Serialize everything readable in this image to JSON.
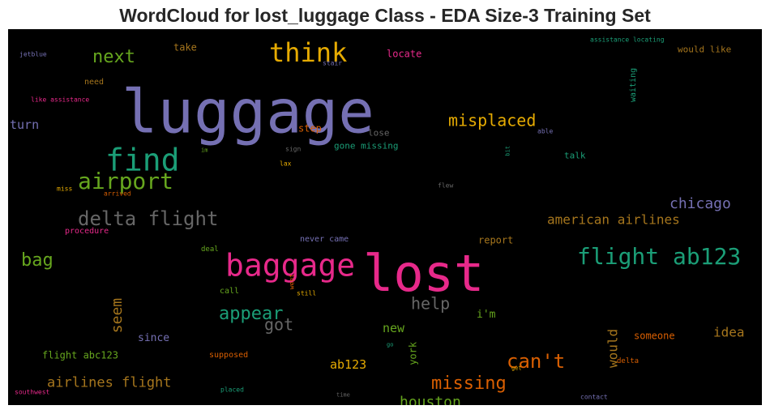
{
  "chart_data": {
    "type": "wordcloud",
    "title": "WordCloud for lost_luggage Class - EDA Size-3 Training Set",
    "colormap": [
      "#7570b3",
      "#1b9e77",
      "#e7298a",
      "#d95f02",
      "#e6ab02",
      "#66a61e",
      "#a6761d",
      "#666666"
    ],
    "words": [
      {
        "text": "luggage",
        "weight": 100,
        "color": "#7570b3"
      },
      {
        "text": "lost",
        "weight": 90,
        "color": "#e7298a"
      },
      {
        "text": "baggage",
        "weight": 62,
        "color": "#e7298a"
      },
      {
        "text": "think",
        "weight": 52,
        "color": "#e6ab02"
      },
      {
        "text": "find",
        "weight": 60,
        "color": "#1b9e77"
      },
      {
        "text": "airport",
        "weight": 44,
        "color": "#66a61e"
      },
      {
        "text": "flight ab123",
        "weight": 46,
        "color": "#1b9e77"
      },
      {
        "text": "delta flight",
        "weight": 40,
        "color": "#666666"
      },
      {
        "text": "misplaced",
        "weight": 34,
        "color": "#e6ab02"
      },
      {
        "text": "next",
        "weight": 34,
        "color": "#66a61e"
      },
      {
        "text": "missing",
        "weight": 36,
        "color": "#d95f02"
      },
      {
        "text": "can't",
        "weight": 36,
        "color": "#d95f02"
      },
      {
        "text": "appear",
        "weight": 36,
        "color": "#1b9e77"
      },
      {
        "text": "chicago",
        "weight": 30,
        "color": "#7570b3"
      },
      {
        "text": "bag",
        "weight": 32,
        "color": "#66a61e"
      },
      {
        "text": "help",
        "weight": 30,
        "color": "#666666"
      },
      {
        "text": "got",
        "weight": 30,
        "color": "#666666"
      },
      {
        "text": "houston",
        "weight": 30,
        "color": "#66a61e"
      },
      {
        "text": "seem",
        "weight": 28,
        "color": "#a6761d"
      },
      {
        "text": "airlines flight",
        "weight": 28,
        "color": "#a6761d"
      },
      {
        "text": "american airlines",
        "weight": 26,
        "color": "#a6761d"
      },
      {
        "text": "would",
        "weight": 26,
        "color": "#a6761d"
      },
      {
        "text": "idea",
        "weight": 26,
        "color": "#a6761d"
      },
      {
        "text": "ab123",
        "weight": 24,
        "color": "#e6ab02"
      },
      {
        "text": "new",
        "weight": 24,
        "color": "#66a61e"
      },
      {
        "text": "turn",
        "weight": 24,
        "color": "#7570b3"
      },
      {
        "text": "york",
        "weight": 20,
        "color": "#66a61e"
      },
      {
        "text": "flight abc123",
        "weight": 20,
        "color": "#66a61e"
      },
      {
        "text": "since",
        "weight": 20,
        "color": "#7570b3"
      },
      {
        "text": "i'm",
        "weight": 20,
        "color": "#66a61e"
      },
      {
        "text": "someone",
        "weight": 20,
        "color": "#d95f02"
      },
      {
        "text": "report",
        "weight": 20,
        "color": "#a6761d"
      },
      {
        "text": "locate",
        "weight": 20,
        "color": "#e7298a"
      },
      {
        "text": "take",
        "weight": 20,
        "color": "#a6761d"
      },
      {
        "text": "step",
        "weight": 20,
        "color": "#d95f02"
      },
      {
        "text": "talk",
        "weight": 18,
        "color": "#1b9e77"
      },
      {
        "text": "would like",
        "weight": 18,
        "color": "#a6761d"
      },
      {
        "text": "lose",
        "weight": 18,
        "color": "#666666"
      },
      {
        "text": "gone missing",
        "weight": 18,
        "color": "#1b9e77"
      },
      {
        "text": "waiting",
        "weight": 16,
        "color": "#1b9e77"
      },
      {
        "text": "need",
        "weight": 16,
        "color": "#a6761d"
      },
      {
        "text": "never came",
        "weight": 18,
        "color": "#7570b3"
      },
      {
        "text": "procedure",
        "weight": 18,
        "color": "#e7298a"
      },
      {
        "text": "supposed",
        "weight": 18,
        "color": "#d95f02"
      },
      {
        "text": "call",
        "weight": 18,
        "color": "#66a61e"
      },
      {
        "text": "delta",
        "weight": 16,
        "color": "#d95f02"
      },
      {
        "text": "deal",
        "weight": 16,
        "color": "#66a61e"
      },
      {
        "text": "assistance locating",
        "weight": 14,
        "color": "#1b9e77"
      },
      {
        "text": "like assistance",
        "weight": 14,
        "color": "#e7298a"
      },
      {
        "text": "jetblue",
        "weight": 14,
        "color": "#7570b3"
      },
      {
        "text": "stair",
        "weight": 14,
        "color": "#7570b3"
      },
      {
        "text": "able",
        "weight": 13,
        "color": "#7570b3"
      },
      {
        "text": "sign",
        "weight": 13,
        "color": "#666666"
      },
      {
        "text": "lax",
        "weight": 13,
        "color": "#e6ab02"
      },
      {
        "text": "im",
        "weight": 12,
        "color": "#66a61e"
      },
      {
        "text": "bit",
        "weight": 12,
        "color": "#1b9e77"
      },
      {
        "text": "miss",
        "weight": 13,
        "color": "#e6ab02"
      },
      {
        "text": "arrived",
        "weight": 13,
        "color": "#d95f02"
      },
      {
        "text": "flew",
        "weight": 13,
        "color": "#666666"
      },
      {
        "text": "went",
        "weight": 13,
        "color": "#d95f02"
      },
      {
        "text": "still",
        "weight": 13,
        "color": "#e6ab02"
      },
      {
        "text": "go",
        "weight": 12,
        "color": "#1b9e77"
      },
      {
        "text": "get",
        "weight": 12,
        "color": "#e6ab02"
      },
      {
        "text": "southwest",
        "weight": 13,
        "color": "#e7298a"
      },
      {
        "text": "placed",
        "weight": 13,
        "color": "#1b9e77"
      },
      {
        "text": "time",
        "weight": 12,
        "color": "#666666"
      },
      {
        "text": "contact",
        "weight": 13,
        "color": "#7570b3"
      }
    ]
  }
}
